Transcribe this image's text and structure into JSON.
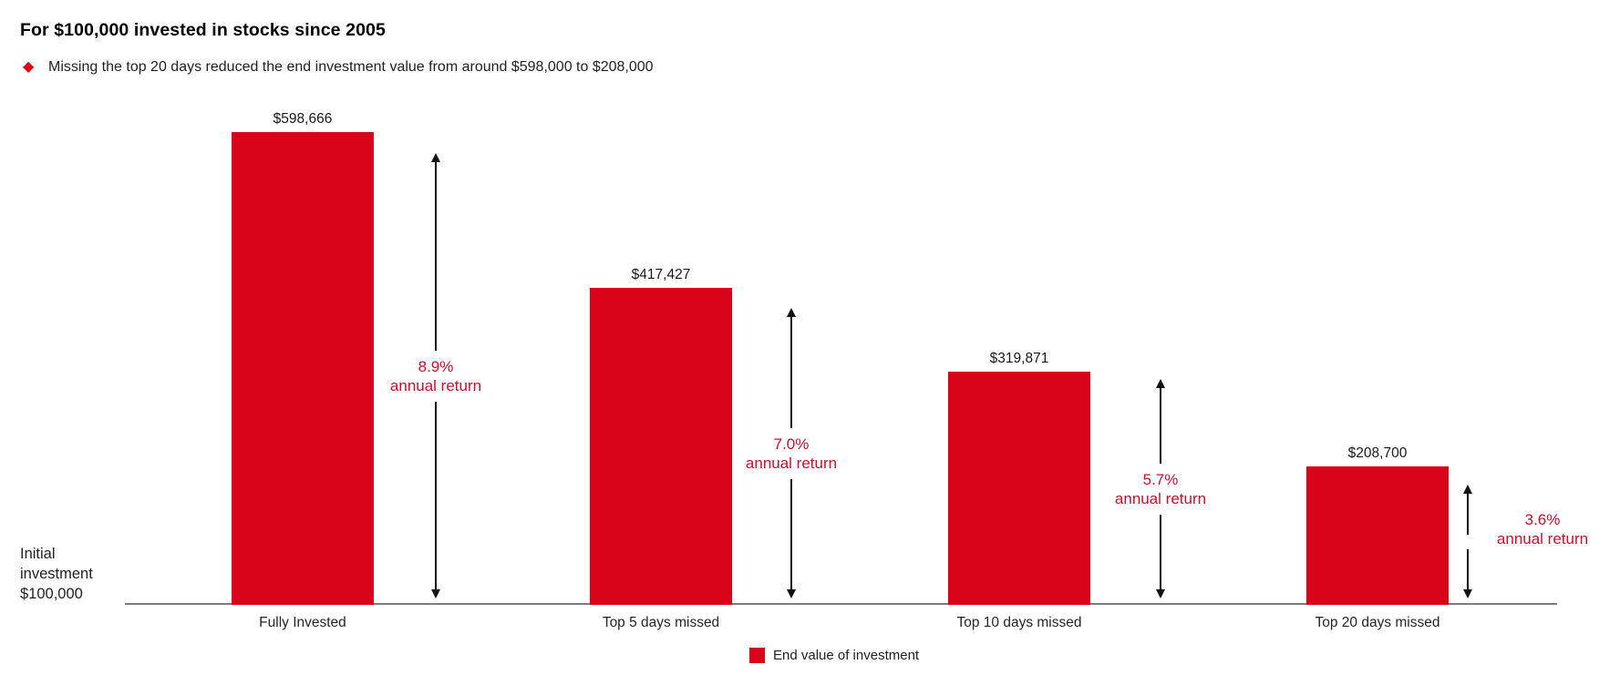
{
  "header": {
    "title": "For $100,000 invested in stocks since 2005",
    "bullet": "Missing the top 20 days reduced the end investment value from around $598,000 to $208,000"
  },
  "axis_label": {
    "lines": [
      "Initial",
      "investment",
      "$100,000"
    ]
  },
  "legend": {
    "label": "End value of investment"
  },
  "colors": {
    "bar_red": "#d9041a",
    "accent_red": "#c41230",
    "axis_gray": "#7d7d7d",
    "arrow_black": "#111111"
  },
  "chart_data": {
    "type": "bar",
    "title": "For $100,000 invested in stocks since 2005",
    "subtitle": "Missing the top 20 days reduced the end investment value from around $598,000 to $208,000",
    "categories": [
      "Fully Invested",
      "Top 5 days missed",
      "Top 10 days missed",
      "Top 20 days missed"
    ],
    "values": [
      598666,
      417427,
      319871,
      208700
    ],
    "value_labels": [
      "$598,666",
      "$417,427",
      "$319,871",
      "$208,700"
    ],
    "annual_returns": [
      "8.9%",
      "7.0%",
      "5.7%",
      "3.6%"
    ],
    "annual_return_suffix": "annual return",
    "baseline_label": "Initial investment $100,000",
    "baseline_value": 100000,
    "legend": [
      "End value of investment"
    ],
    "legend_position": "bottom-center",
    "grid": false,
    "bar_color": "#d9041a"
  }
}
